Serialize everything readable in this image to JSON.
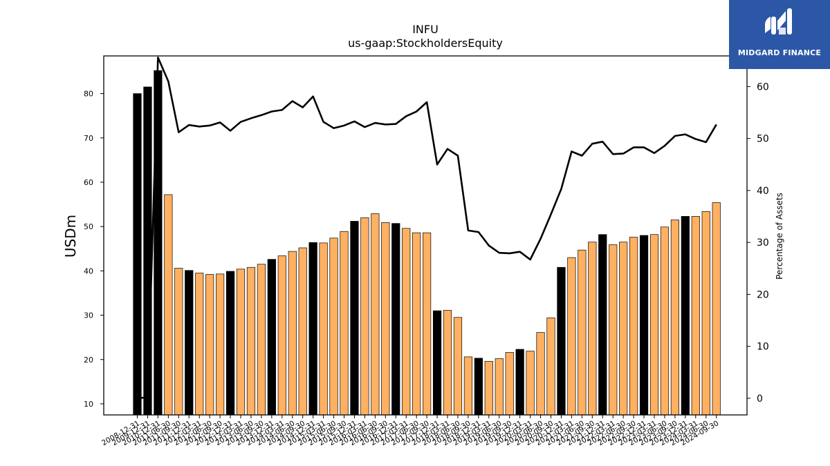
{
  "chart_data": {
    "type": "bar+line",
    "title": "INFU",
    "subtitle": "us-gaap:StockholdersEquity",
    "ylabel": "USDm",
    "y2label": "Percentage of Assets",
    "ylim": [
      7.5,
      88.5
    ],
    "y2lim": [
      -3.2,
      65.9
    ],
    "yticks": [
      10,
      20,
      30,
      40,
      50,
      60,
      70,
      80
    ],
    "y2ticks": [
      0,
      10,
      20,
      30,
      40,
      50,
      60
    ],
    "grid": false,
    "categories": [
      "2008-12-31",
      "2009-12-31",
      "2010-12-31",
      "2011-06-30",
      "2011-09-30",
      "2011-12-31",
      "2012-03-31",
      "2012-06-30",
      "2012-09-30",
      "2012-12-31",
      "2013-03-31",
      "2013-06-30",
      "2013-09-30",
      "2013-12-31",
      "2014-03-31",
      "2014-06-30",
      "2014-09-30",
      "2014-12-31",
      "2015-03-31",
      "2015-06-30",
      "2015-09-30",
      "2015-12-31",
      "2016-03-31",
      "2016-06-30",
      "2016-09-30",
      "2016-12-31",
      "2017-03-31",
      "2017-06-30",
      "2017-09-30",
      "2017-12-31",
      "2018-03-31",
      "2018-06-30",
      "2018-09-30",
      "2018-12-31",
      "2019-03-31",
      "2019-06-30",
      "2019-09-30",
      "2019-12-31",
      "2020-03-31",
      "2020-06-30",
      "2020-09-30",
      "2020-12-31",
      "2021-03-31",
      "2021-06-30",
      "2021-09-30",
      "2021-12-31",
      "2022-03-31",
      "2022-06-30",
      "2022-09-30",
      "2022-12-31",
      "2023-03-31",
      "2023-06-30",
      "2023-09-30",
      "2023-12-31",
      "2024-03-31",
      "2024-06-30",
      "2024-09-30"
    ],
    "series": [
      {
        "kind": "bar",
        "values": [
          80.0,
          81.5,
          85.2,
          57.2,
          40.6,
          40.1,
          39.5,
          39.2,
          39.3,
          39.9,
          40.4,
          40.8,
          41.5,
          42.6,
          43.4,
          44.4,
          45.2,
          46.4,
          46.3,
          47.4,
          48.9,
          51.2,
          52.0,
          52.9,
          50.9,
          50.7,
          49.6,
          48.6,
          48.6,
          31.0,
          31.1,
          29.5,
          20.6,
          20.3,
          19.6,
          20.2,
          21.6,
          22.3,
          21.9,
          26.1,
          29.4,
          40.8,
          43.0,
          44.7,
          46.5,
          48.2,
          45.9,
          46.5,
          47.6,
          48.0,
          48.2,
          49.9,
          51.5,
          52.3,
          52.3,
          53.4,
          55.4
        ],
        "highlight_fill": "#000000",
        "fill": "#ffb061",
        "highlight_categories": [
          "2008-12-31",
          "2009-12-31",
          "2010-12-31",
          "2011-12-31",
          "2012-12-31",
          "2013-12-31",
          "2014-12-31",
          "2015-12-31",
          "2016-12-31",
          "2017-12-31",
          "2018-12-31",
          "2019-12-31",
          "2020-12-31",
          "2021-12-31",
          "2022-12-31",
          "2023-12-31"
        ]
      },
      {
        "kind": "line",
        "axis": "right",
        "color": "#000000",
        "values": [
          0.0,
          0.2,
          65.6,
          61.0,
          51.2,
          52.6,
          52.3,
          52.5,
          53.1,
          51.5,
          53.2,
          53.9,
          54.5,
          55.2,
          55.5,
          57.2,
          56.0,
          58.1,
          53.2,
          52.0,
          52.5,
          53.3,
          52.2,
          53.0,
          52.7,
          52.8,
          54.3,
          55.2,
          57.0,
          45.0,
          48.0,
          46.7,
          32.3,
          32.0,
          29.4,
          28.0,
          27.9,
          28.2,
          26.7,
          30.7,
          35.4,
          40.3,
          47.5,
          46.7,
          49.0,
          49.4,
          47.0,
          47.1,
          48.3,
          48.3,
          47.2,
          48.6,
          50.5,
          50.8,
          49.9,
          49.3,
          52.7
        ]
      }
    ]
  },
  "logo": {
    "text": "MIDGARD FINANCE"
  }
}
